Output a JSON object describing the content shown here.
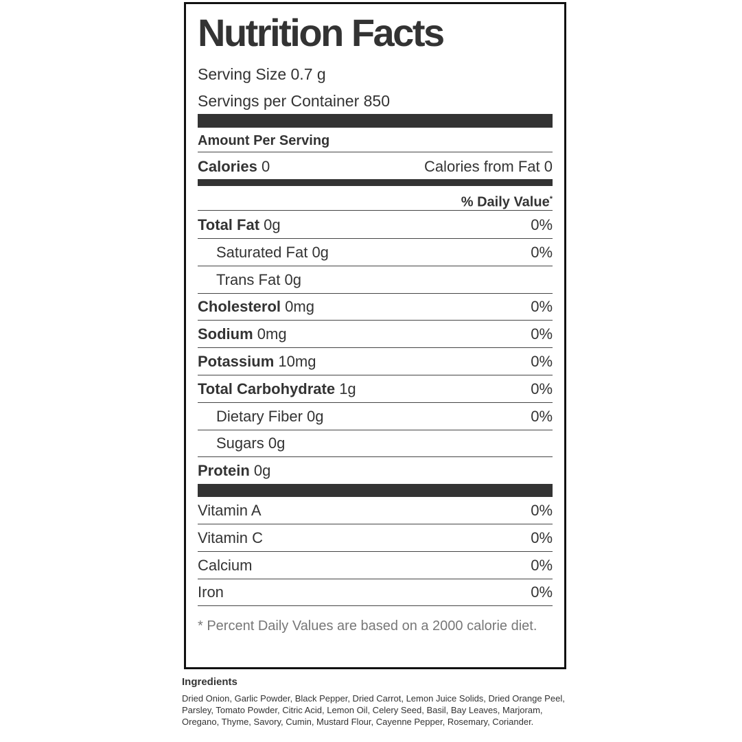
{
  "title": "Nutrition Facts",
  "serving_size": "Serving Size 0.7 g",
  "servings_per_container": "Servings per Container 850",
  "amount_per_serving": "Amount Per Serving",
  "calories": {
    "label": "Calories",
    "amount": "0",
    "from_fat": "Calories from Fat 0"
  },
  "daily_value_header": {
    "text": "% Daily Value",
    "marker": "*"
  },
  "nutrients": [
    {
      "label": "Total Fat",
      "amount": "0g",
      "daily_value": "0%"
    },
    {
      "label": "Saturated Fat",
      "amount": "0g",
      "daily_value": "0%"
    },
    {
      "label": "Trans Fat",
      "amount": "0g"
    },
    {
      "label": "Cholesterol",
      "amount": "0mg",
      "daily_value": "0%"
    },
    {
      "label": "Sodium",
      "amount": "0mg",
      "daily_value": "0%"
    },
    {
      "label": "Potassium",
      "amount": "10mg",
      "daily_value": "0%"
    },
    {
      "label": "Total Carbohydrate",
      "amount": "1g",
      "daily_value": "0%"
    },
    {
      "label": "Dietary Fiber",
      "amount": "0g",
      "daily_value": "0%"
    },
    {
      "label": "Sugars",
      "amount": "0g"
    },
    {
      "label": "Protein",
      "amount": "0g"
    }
  ],
  "vitamins": [
    {
      "label": "Vitamin A",
      "daily_value": "0%"
    },
    {
      "label": "Vitamin C",
      "daily_value": "0%"
    },
    {
      "label": "Calcium",
      "daily_value": "0%"
    },
    {
      "label": "Iron",
      "daily_value": "0%"
    }
  ],
  "footnote": "* Percent Daily Values are based on a 2000 calorie diet.",
  "ingredients": {
    "title": "Ingredients",
    "text": "Dried Onion, Garlic Powder, Black Pepper, Dried Carrot, Lemon Juice Solids, Dried Orange Peel, Parsley, Tomato Powder, Citric Acid, Lemon Oil, Celery Seed, Basil, Bay Leaves, Marjoram, Oregano, Thyme, Savory, Cumin, Mustard Flour, Cayenne Pepper, Rosemary, Coriander."
  }
}
